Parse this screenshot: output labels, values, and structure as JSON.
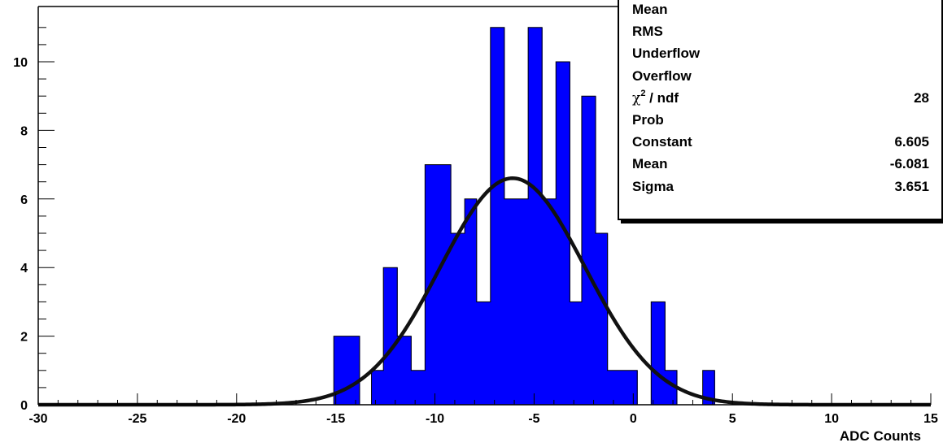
{
  "chart_data": {
    "type": "bar",
    "histogram": true,
    "xlabel": "ADC Counts",
    "ylabel": "",
    "title": "",
    "xlim": [
      -30,
      15
    ],
    "ylim": [
      0,
      11.5
    ],
    "x_ticks": [
      "-30",
      "-25",
      "-20",
      "-15",
      "-10",
      "-5",
      "0",
      "5",
      "10",
      "15"
    ],
    "y_ticks": [
      "0",
      "2",
      "4",
      "6",
      "8",
      "10"
    ],
    "bin_edges": [
      -15.1,
      -13.8,
      -13.2,
      -12.6,
      -11.9,
      -11.2,
      -10.5,
      -9.2,
      -8.5,
      -7.9,
      -7.2,
      -6.5,
      -5.3,
      -4.6,
      -3.9,
      -3.2,
      -2.6,
      -1.9,
      -1.3,
      0.2,
      0.9,
      1.6,
      2.2,
      3.5,
      4.1
    ],
    "counts": [
      2,
      0,
      1,
      4,
      2,
      1,
      7,
      5,
      6,
      3,
      11,
      6,
      11,
      6,
      10,
      3,
      9,
      5,
      1,
      0,
      3,
      1,
      0,
      1
    ],
    "fit": {
      "function": "gaus",
      "constant": 6.605,
      "mean": -6.081,
      "sigma": 3.651
    },
    "colors": {
      "fill": "#0000ff",
      "fit_line": "#111111",
      "axis": "#000000"
    }
  },
  "stats_box": {
    "rows": [
      {
        "name": "Mean",
        "value": ""
      },
      {
        "name": "RMS",
        "value": ""
      },
      {
        "name": "Underflow",
        "value": ""
      },
      {
        "name": "Overflow",
        "value": ""
      },
      {
        "name_chi": "χ",
        "name_sup": "2",
        "name_rest": " / ndf",
        "value": "28"
      },
      {
        "name": "Prob",
        "value": ""
      },
      {
        "name": "Constant",
        "value": "6.605"
      },
      {
        "name": "Mean",
        "value": "-6.081"
      },
      {
        "name": "Sigma",
        "value": "3.651"
      }
    ]
  }
}
